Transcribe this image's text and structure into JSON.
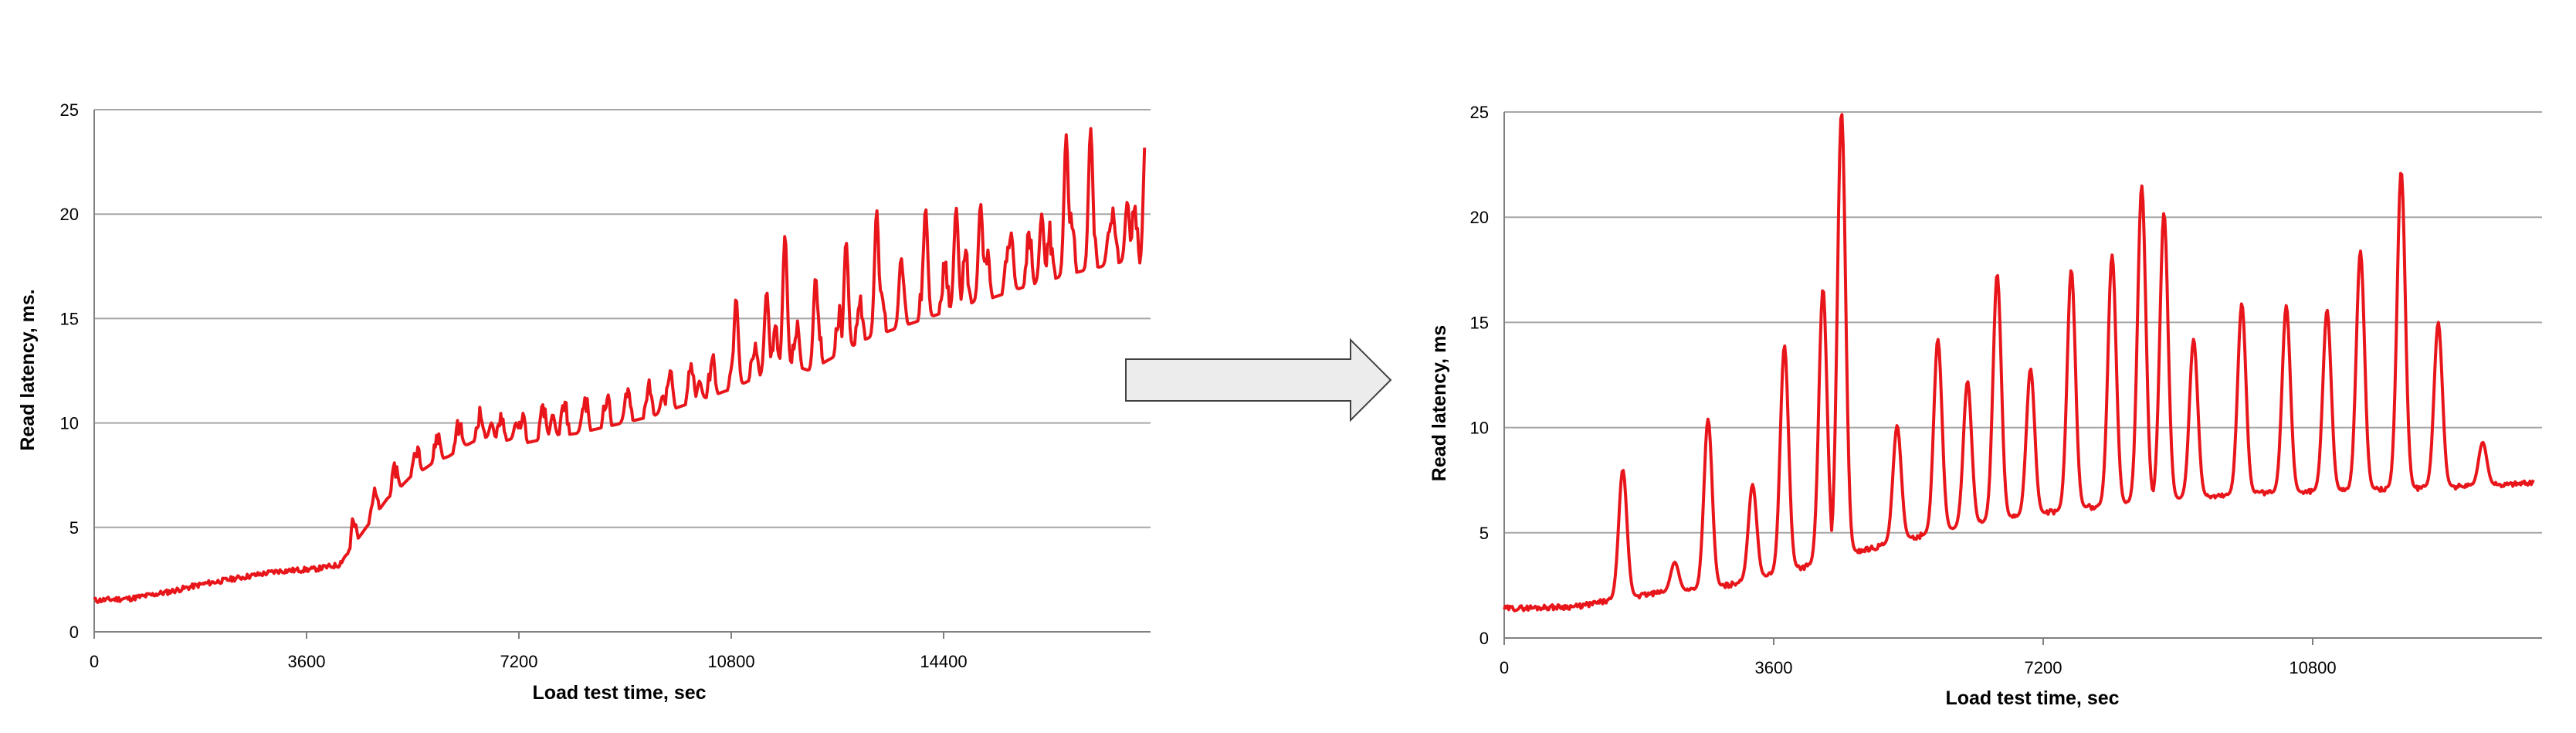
{
  "colors": {
    "series": "#e8161b",
    "arrow_fill": "#ececec",
    "arrow_stroke": "#404040"
  },
  "arrow_icon": "right-arrow-icon",
  "chart_data": [
    {
      "type": "line",
      "title": "",
      "xlabel": "Load test time, sec",
      "ylabel": "Read latency, ms.",
      "xlim": [
        0,
        17280
      ],
      "ylim": [
        0,
        25
      ],
      "x_ticks": [
        "0",
        "3600",
        "7200",
        "10800",
        "14400"
      ],
      "y_ticks": [
        "0",
        "5",
        "10",
        "15",
        "20",
        "25"
      ],
      "grid": true,
      "series": [
        {
          "x": [
            0,
            600,
            1200,
            1800,
            2400,
            3000,
            3600,
            4000,
            4200,
            4400,
            4600,
            4800,
            5000,
            5200,
            5400,
            5600,
            5800,
            6000,
            6200,
            6400,
            6600,
            6800,
            7000,
            7300,
            7600,
            7900,
            8200,
            8500,
            8800,
            9100,
            9400,
            9700,
            10000,
            10400,
            10700,
            11000,
            11300,
            11500,
            11700,
            12000,
            12300,
            12600,
            12900,
            13200,
            13500,
            13800,
            14100,
            14400,
            14700,
            15000,
            15300,
            15600,
            15900,
            16200,
            16500,
            16800,
            17000,
            17100,
            17200
          ],
          "y": [
            1.5,
            1.6,
            1.9,
            2.3,
            2.6,
            2.9,
            3.0,
            3.2,
            4.0,
            4.8,
            5.6,
            6.4,
            6.9,
            7.5,
            7.8,
            8.2,
            8.4,
            8.8,
            9.1,
            9.3,
            9.1,
            9.2,
            9.0,
            9.2,
            9.4,
            9.5,
            9.7,
            9.9,
            10.1,
            10.3,
            10.6,
            10.9,
            11.2,
            11.6,
            12.0,
            12.4,
            12.8,
            12.7,
            12.5,
            13.0,
            13.5,
            14.0,
            14.3,
            14.6,
            14.9,
            15.2,
            15.5,
            15.8,
            16.0,
            16.3,
            16.6,
            16.8,
            17.1,
            17.3,
            17.5,
            17.7,
            17.8,
            17.5,
            17.6
          ],
          "spikes_x": [
            4500,
            4800,
            5200,
            5600,
            6000,
            6500,
            6900,
            7500,
            8000,
            8700,
            9300,
            9900,
            10500,
            11000,
            11300,
            11800,
            12300,
            12800,
            13200,
            13600,
            14100,
            14500,
            15000,
            15500,
            15900,
            16300,
            16600,
            16900,
            17200
          ],
          "spikes_y": [
            4.8,
            6.2,
            7.2,
            8.5,
            9.3,
            10.0,
            10.0,
            10.4,
            10.6,
            11.0,
            11.3,
            12.0,
            16.0,
            16.3,
            19.0,
            17.0,
            18.7,
            20.2,
            17.9,
            20.3,
            20.3,
            20.5,
            19.1,
            20.0,
            23.8,
            24.1,
            19.2,
            20.6,
            24.1
          ]
        }
      ]
    },
    {
      "type": "line",
      "title": "",
      "xlabel": "Load test time, sec",
      "ylabel": "Read latency, ms",
      "xlim": [
        0,
        14000
      ],
      "ylim": [
        0,
        25
      ],
      "x_ticks": [
        "0",
        "3600",
        "7200",
        "10800"
      ],
      "y_ticks": [
        "0",
        "5",
        "10",
        "15",
        "20",
        "25"
      ],
      "grid": true,
      "series": [
        {
          "x": [
            0,
            1000,
            1600,
            2000,
            2600,
            3000,
            3400,
            3800,
            4200,
            4600,
            5000,
            5400,
            5800,
            6200,
            6600,
            7000,
            7400,
            7800,
            8200,
            8600,
            9000,
            9400,
            9800,
            10200,
            10600,
            11000,
            11400,
            11800,
            12200,
            12600,
            13000,
            13500,
            13900
          ],
          "y": [
            1.4,
            1.5,
            1.9,
            2.1,
            2.3,
            2.5,
            2.8,
            3.2,
            3.5,
            4.0,
            4.3,
            4.7,
            5.0,
            5.3,
            5.6,
            5.8,
            6.0,
            6.2,
            6.3,
            6.5,
            6.6,
            6.7,
            6.8,
            6.9,
            6.9,
            7.0,
            7.0,
            7.1,
            7.1,
            7.2,
            7.2,
            7.3,
            7.4
          ],
          "spikes_x": [
            1600,
            2300,
            2750,
            3350,
            3780,
            4300,
            4550,
            5300,
            5850,
            6250,
            6650,
            7100,
            7650,
            8200,
            8600,
            8900,
            9300,
            9950,
            10550,
            11100,
            11550,
            12100,
            12600,
            13200
          ],
          "spikes_y": [
            8.0,
            3.6,
            10.4,
            7.3,
            13.9,
            16.6,
            25.0,
            10.1,
            14.2,
            12.2,
            17.3,
            12.8,
            17.5,
            18.2,
            21.5,
            20.2,
            14.2,
            15.9,
            15.8,
            15.6,
            18.4,
            22.2,
            15.0,
            9.3
          ]
        }
      ]
    }
  ]
}
